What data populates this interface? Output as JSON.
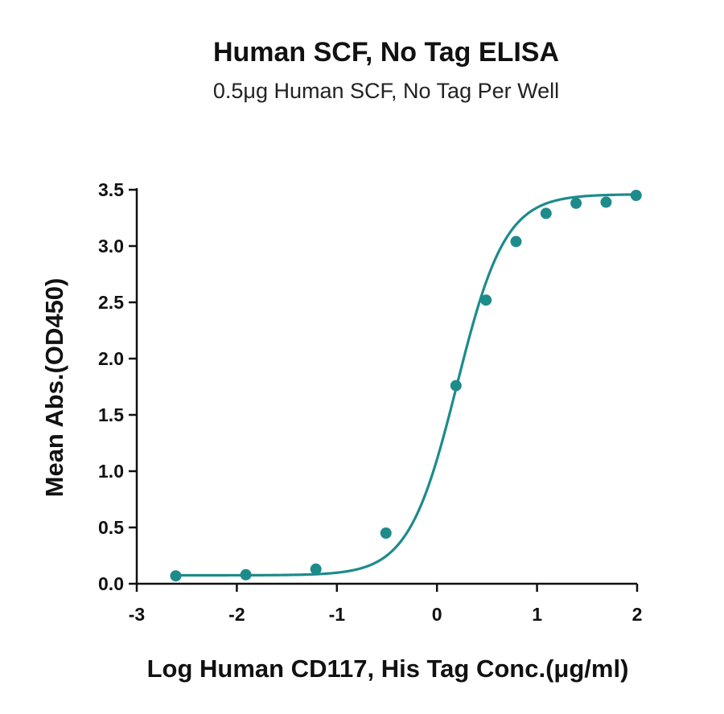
{
  "chart_data": {
    "type": "scatter",
    "title": "Human SCF, No Tag ELISA",
    "subtitle": "0.5μg Human SCF, No Tag Per Well",
    "xlabel": "Log Human CD117, His Tag Conc.(μg/ml)",
    "ylabel": "Mean Abs.(OD450)",
    "xlim": [
      -3,
      2
    ],
    "ylim": [
      0,
      3.5
    ],
    "x_ticks": [
      -3,
      -2,
      -1,
      0,
      1,
      2
    ],
    "x_tick_labels": [
      "-3",
      "-2",
      "-1",
      "0",
      "1",
      "2"
    ],
    "y_ticks": [
      0,
      0.5,
      1,
      1.5,
      2,
      2.5,
      3,
      3.5
    ],
    "y_tick_labels": [
      "0.0",
      "0.5",
      "1.0",
      "1.5",
      "2.0",
      "2.5",
      "3.0",
      "3.5"
    ],
    "grid": false,
    "legend": "none",
    "color": "#1e8b8b",
    "series": [
      {
        "x": [
          -2.61,
          -1.91,
          -1.21,
          -0.51,
          0.19,
          0.49,
          0.79,
          1.09,
          1.39,
          1.69,
          1.99
        ],
        "y": [
          0.07,
          0.08,
          0.13,
          0.45,
          1.76,
          2.52,
          3.04,
          3.29,
          3.38,
          3.39,
          3.45
        ]
      }
    ],
    "fit": {
      "model": "4PL",
      "bottom": 0.075,
      "top": 3.46,
      "logEC50": 0.2,
      "hill": 1.8
    }
  }
}
